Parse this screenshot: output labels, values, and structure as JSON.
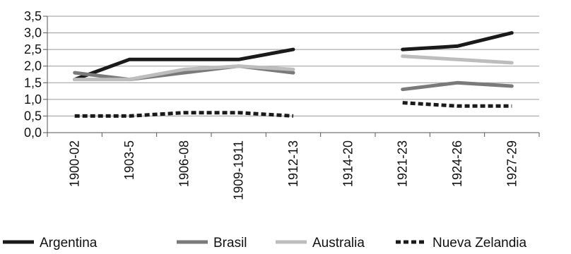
{
  "chart_data": {
    "type": "line",
    "categories": [
      "1900-02",
      "1903-5",
      "1906-08",
      "1909-1911",
      "1912-13",
      "1914-20",
      "1921-23",
      "1924-26",
      "1927-29"
    ],
    "ylim": [
      0,
      3.5
    ],
    "y_ticks": [
      "0,0",
      "0,5",
      "1,0",
      "1,5",
      "2,0",
      "2,5",
      "3,0",
      "3,5"
    ],
    "grid": true,
    "legend_position": "bottom",
    "series": [
      {
        "name": "Argentina",
        "color": "#1a1a1a",
        "style": "solid",
        "values": [
          1.6,
          2.2,
          2.2,
          2.2,
          2.5,
          null,
          2.5,
          2.6,
          3.0
        ]
      },
      {
        "name": "Brasil",
        "color": "#7a7a7a",
        "style": "solid",
        "values": [
          1.8,
          1.6,
          1.8,
          2.0,
          1.8,
          null,
          1.3,
          1.5,
          1.4
        ]
      },
      {
        "name": "Australia",
        "color": "#bdbdbd",
        "style": "solid",
        "values": [
          1.6,
          1.6,
          1.9,
          2.0,
          1.9,
          null,
          2.3,
          2.2,
          2.1
        ]
      },
      {
        "name": "Nueva Zelandia",
        "color": "#1a1a1a",
        "style": "dashed",
        "values": [
          0.5,
          0.5,
          0.6,
          0.6,
          0.5,
          null,
          0.9,
          0.8,
          0.8
        ]
      }
    ]
  }
}
